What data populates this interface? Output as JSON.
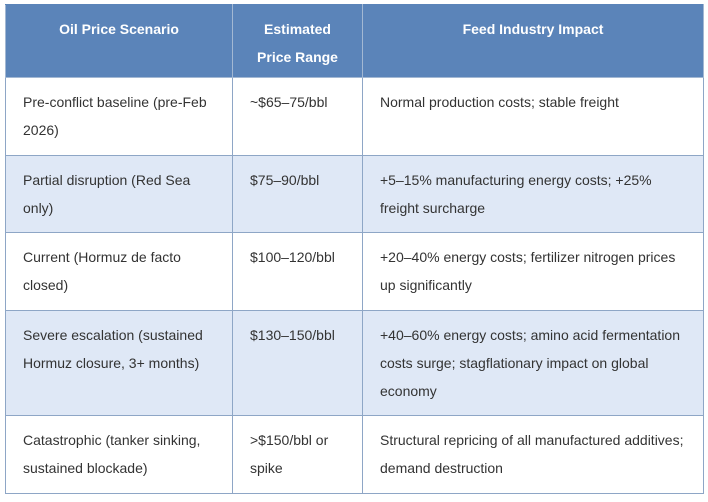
{
  "table": {
    "headers": [
      {
        "line1": "Oil Price Scenario",
        "line2": ""
      },
      {
        "line1": "Estimated",
        "line2": "Price Range"
      },
      {
        "line1": "Feed Industry Impact",
        "line2": ""
      }
    ],
    "rows": [
      {
        "scenario": "Pre-conflict baseline (pre-Feb 2026)",
        "price": "~$65–75/bbl",
        "impact": "Normal production costs; stable freight"
      },
      {
        "scenario": "Partial disruption (Red Sea only)",
        "price": "$75–90/bbl",
        "impact": "+5–15% manufacturing energy costs; +25% freight surcharge"
      },
      {
        "scenario": "Current (Hormuz de facto closed)",
        "price": "$100–120/bbl",
        "impact": "+20–40% energy costs; fertilizer nitrogen prices up significantly"
      },
      {
        "scenario": "Severe escalation (sustained Hormuz closure, 3+ months)",
        "price": "$130–150/bbl",
        "impact": "+40–60% energy costs; amino acid fermentation costs surge; stagflationary impact on global economy"
      },
      {
        "scenario": "Catastrophic (tanker sinking, sustained blockade)",
        "price": ">$150/bbl or spike",
        "impact": "Structural repricing of all manufactured additives; demand destruction"
      }
    ]
  }
}
